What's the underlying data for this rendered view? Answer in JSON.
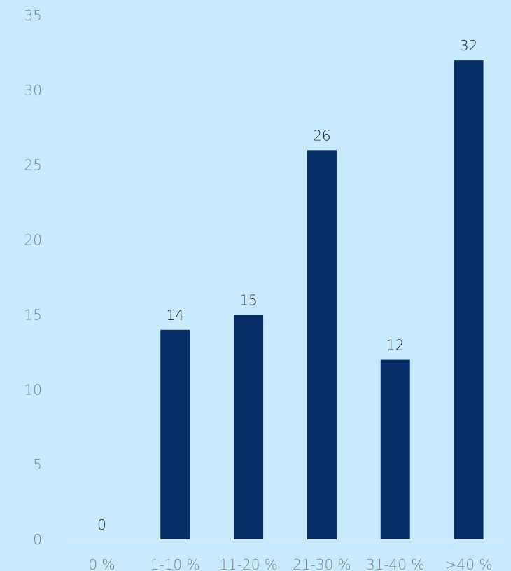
{
  "chart_data": {
    "type": "bar",
    "categories": [
      "0 %",
      "1-10 %",
      "11-20 %",
      "21-30 %",
      "31-40 %",
      ">40 %"
    ],
    "values": [
      0,
      14,
      15,
      26,
      12,
      32
    ],
    "ylim": [
      0,
      35
    ],
    "yticks": [
      "0",
      "5",
      "10",
      "15",
      "20",
      "25",
      "30",
      "35"
    ],
    "data_labels": [
      "0",
      "14",
      "15",
      "26",
      "12",
      "32"
    ],
    "grid": false,
    "legend": "none",
    "colors": {
      "background": "#c9eafc",
      "bar": "#062d68",
      "axis_line": "#e4e7ea",
      "tick_text": "#7a8189",
      "data_label_text": "#1d1d1d"
    }
  }
}
